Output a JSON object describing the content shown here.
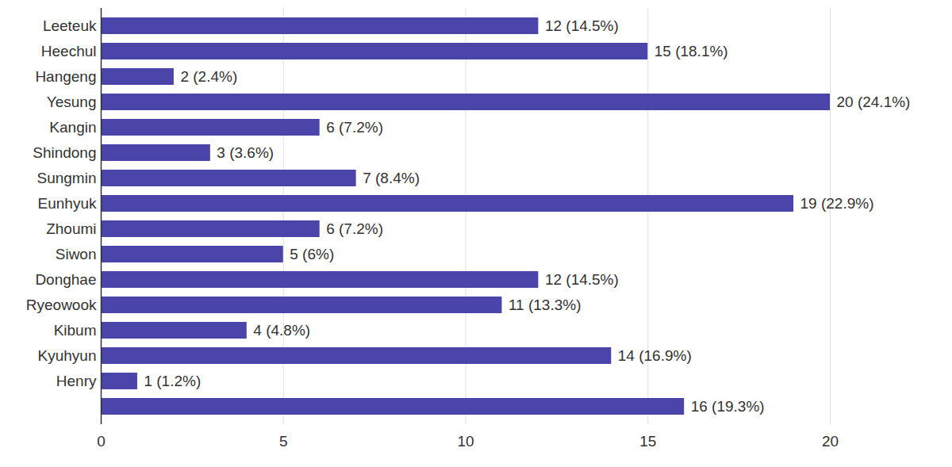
{
  "chart_data": {
    "type": "bar",
    "orientation": "horizontal",
    "categories": [
      "Leeteuk",
      "Heechul",
      "Hangeng",
      "Yesung",
      "Kangin",
      "Shindong",
      "Sungmin",
      "Eunhyuk",
      "Zhoumi",
      "Siwon",
      "Donghae",
      "Ryeowook",
      "Kibum",
      "Kyuhyun",
      "Henry",
      null
    ],
    "values": [
      12,
      15,
      2,
      20,
      6,
      3,
      7,
      19,
      6,
      5,
      12,
      11,
      4,
      14,
      1,
      16
    ],
    "value_labels": [
      "12 (14.5%)",
      "15 (18.1%)",
      "2 (2.4%)",
      "20 (24.1%)",
      "6 (7.2%)",
      "3 (3.6%)",
      "7 (8.4%)",
      "19 (22.9%)",
      "6 (7.2%)",
      "5 (6%)",
      "12 (14.5%)",
      "11 (13.3%)",
      "4 (4.8%)",
      "14 (16.9%)",
      "1 (1.2%)",
      "16 (19.3%)"
    ],
    "color": "#4b45aa",
    "xlim": [
      0,
      20
    ],
    "xticks": [
      0,
      5,
      10,
      15,
      20
    ],
    "grid": true,
    "data_labels": true
  }
}
